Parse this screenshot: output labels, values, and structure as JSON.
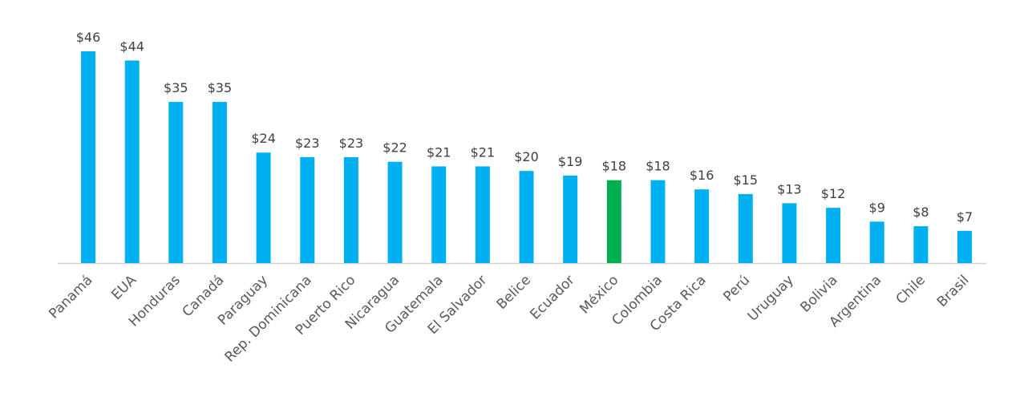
{
  "chart_data": {
    "type": "bar",
    "categories": [
      "Panamá",
      "EUA",
      "Honduras",
      "Canadá",
      "Paraguay",
      "Rep. Dominicana",
      "Puerto Rico",
      "Nicaragua",
      "Guatemala",
      "El Salvador",
      "Belice",
      "Ecuador",
      "México",
      "Colombia",
      "Costa Rica",
      "Perú",
      "Uruguay",
      "Bolivia",
      "Argentina",
      "Chile",
      "Brasil"
    ],
    "values": [
      46,
      44,
      35,
      35,
      24,
      23,
      23,
      22,
      21,
      21,
      20,
      19,
      18,
      18,
      16,
      15,
      13,
      12,
      9,
      8,
      7
    ],
    "value_labels": [
      "$46",
      "$44",
      "$35",
      "$35",
      "$24",
      "$23",
      "$23",
      "$22",
      "$21",
      "$21",
      "$20",
      "$19",
      "$18",
      "$18",
      "$16",
      "$15",
      "$13",
      "$12",
      "$9",
      "$8",
      "$7"
    ],
    "colors": [
      "#00b0f0",
      "#00b0f0",
      "#00b0f0",
      "#00b0f0",
      "#00b0f0",
      "#00b0f0",
      "#00b0f0",
      "#00b0f0",
      "#00b0f0",
      "#00b0f0",
      "#00b0f0",
      "#00b0f0",
      "#00b050",
      "#00b0f0",
      "#00b0f0",
      "#00b0f0",
      "#00b0f0",
      "#00b0f0",
      "#00b0f0",
      "#00b0f0",
      "#00b0f0"
    ],
    "ylim": [
      0,
      50
    ]
  }
}
